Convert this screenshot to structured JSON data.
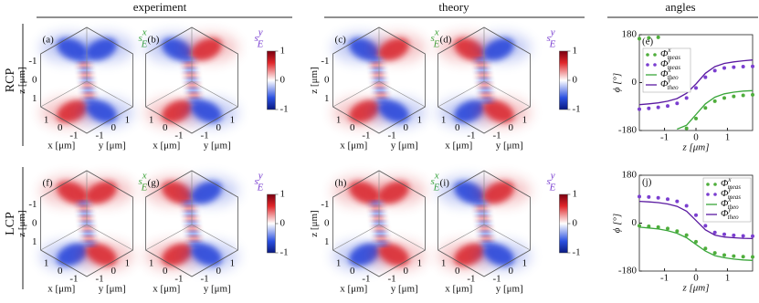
{
  "headers": [
    "experiment",
    "theory",
    "angles"
  ],
  "row_labels": [
    "RCP",
    "LCP"
  ],
  "panels": [
    [
      {
        "label": "(a)"
      },
      {
        "label": "(b)"
      },
      {
        "label": "(c)"
      },
      {
        "label": "(d)"
      }
    ],
    [
      {
        "label": "(f)"
      },
      {
        "label": "(g)"
      },
      {
        "label": "(h)"
      },
      {
        "label": "(i)"
      }
    ]
  ],
  "stokes_labels": [
    {
      "base": "s",
      "sub": "E",
      "sup": "x",
      "color": "#3aa63a"
    },
    {
      "base": "s",
      "sub": "E",
      "sup": "y",
      "color": "#7a3fd1"
    }
  ],
  "cube_axes": {
    "z_label": "z [μm]",
    "x_label": "x [μm]",
    "y_label": "y [μm]",
    "z_ticks": [
      -1,
      0,
      1
    ],
    "x_ticks": [
      1,
      0,
      -1
    ],
    "y_ticks": [
      -1,
      0,
      1
    ]
  },
  "colorbar_ticks": [
    1,
    0,
    -1
  ],
  "chart_data": [
    {
      "type": "line",
      "label": "(e)",
      "xlabel": "z [μm]",
      "ylabel": "ϕ [°]",
      "xlim": [
        -1.8,
        1.8
      ],
      "xticks": [
        -1,
        0,
        1
      ],
      "ylim": [
        -180,
        180
      ],
      "yticks": [
        -180,
        0,
        180
      ],
      "legend": "upper left",
      "x": [
        -1.8,
        -1.5,
        -1.2,
        -0.9,
        -0.6,
        -0.3,
        0,
        0.3,
        0.6,
        0.9,
        1.2,
        1.5,
        1.8
      ],
      "series": [
        {
          "name": "Φ",
          "sup": "x",
          "sub": "meas",
          "style": "markers",
          "color": "#4fae3c",
          "values": [
            165,
            168,
            170,
            null,
            null,
            -172,
            -135,
            -95,
            -70,
            -58,
            -52,
            -48,
            -46
          ]
        },
        {
          "name": "Φ",
          "sup": "y",
          "sub": "meas",
          "style": "markers",
          "color": "#7b3fd0",
          "values": [
            -100,
            -97,
            -93,
            -88,
            -78,
            -58,
            -20,
            20,
            45,
            55,
            58,
            60,
            61
          ]
        },
        {
          "name": "Φ",
          "sup": "x",
          "sub": "theo",
          "style": "line",
          "color": "#3aa63a",
          "values": [
            null,
            null,
            null,
            null,
            -175,
            -160,
            -120,
            -80,
            -55,
            -42,
            -36,
            -32,
            -30
          ]
        },
        {
          "name": "Φ",
          "sup": "y",
          "sub": "theo",
          "style": "line",
          "color": "#5a1aa0",
          "values": [
            -83,
            -80,
            -76,
            -70,
            -60,
            -40,
            -5,
            35,
            60,
            72,
            78,
            82,
            85
          ]
        }
      ]
    },
    {
      "type": "line",
      "label": "(j)",
      "xlabel": "z [μm]",
      "ylabel": "ϕ [°]",
      "xlim": [
        -1.8,
        1.8
      ],
      "xticks": [
        -1,
        0,
        1
      ],
      "ylim": [
        -180,
        180
      ],
      "yticks": [
        -180,
        0,
        180
      ],
      "legend": "upper right",
      "x": [
        -1.8,
        -1.5,
        -1.2,
        -0.9,
        -0.6,
        -0.3,
        0,
        0.3,
        0.6,
        0.9,
        1.2,
        1.5,
        1.8
      ],
      "series": [
        {
          "name": "Φ",
          "sup": "x",
          "sub": "meas",
          "style": "markers",
          "color": "#4fae3c",
          "values": [
            -10,
            -12,
            -15,
            -20,
            -30,
            -45,
            -70,
            -95,
            -112,
            -120,
            -124,
            -126,
            -127
          ]
        },
        {
          "name": "Φ",
          "sup": "y",
          "sub": "meas",
          "style": "markers",
          "color": "#7b3fd0",
          "values": [
            100,
            98,
            95,
            90,
            82,
            65,
            30,
            -10,
            -35,
            -42,
            -46,
            -48,
            -49
          ]
        },
        {
          "name": "Φ",
          "sup": "x",
          "sub": "theo",
          "style": "line",
          "color": "#3aa63a",
          "values": [
            -15,
            -18,
            -22,
            -28,
            -38,
            -55,
            -80,
            -105,
            -122,
            -130,
            -135,
            -138,
            -140
          ]
        },
        {
          "name": "Φ",
          "sup": "y",
          "sub": "theo",
          "style": "line",
          "color": "#5a1aa0",
          "values": [
            82,
            80,
            77,
            72,
            63,
            45,
            10,
            -25,
            -45,
            -52,
            -55,
            -57,
            -58
          ]
        }
      ]
    }
  ]
}
